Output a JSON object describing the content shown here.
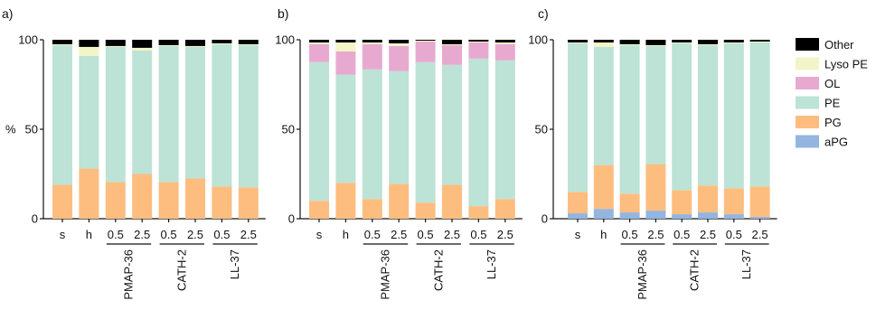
{
  "figure": {
    "ylabel": "%",
    "yticks": [
      0,
      50,
      100
    ],
    "ylim": [
      0,
      100
    ]
  },
  "legend": {
    "items": [
      {
        "name": "Other",
        "color": "#000000"
      },
      {
        "name": "Lyso PE",
        "color": "#f3f5c8"
      },
      {
        "name": "OL",
        "color": "#e8a9d1"
      },
      {
        "name": "PE",
        "color": "#bce3d5"
      },
      {
        "name": "PG",
        "color": "#fdbd7f"
      },
      {
        "name": "aPG",
        "color": "#93b5e0"
      }
    ]
  },
  "chart_data": [
    {
      "panel": "a)",
      "type": "bar",
      "stacked": true,
      "categories": [
        "s",
        "h",
        "0.5",
        "2.5",
        "0.5",
        "2.5",
        "0.5",
        "2.5"
      ],
      "groups": [
        {
          "name": "PMAP-36",
          "from": 2,
          "to": 3
        },
        {
          "name": "CATH-2",
          "from": 4,
          "to": 5
        },
        {
          "name": "LL-37",
          "from": 6,
          "to": 7
        }
      ],
      "ylim": [
        0,
        100
      ],
      "series": [
        {
          "name": "aPG",
          "values": [
            0,
            0,
            0,
            0,
            0,
            0,
            0,
            0
          ]
        },
        {
          "name": "PG",
          "values": [
            19,
            28,
            20.5,
            25,
            20.5,
            22.5,
            18,
            17.5
          ]
        },
        {
          "name": "PE",
          "values": [
            78,
            63,
            75.5,
            69,
            76,
            73.5,
            79.5,
            79.5
          ]
        },
        {
          "name": "OL",
          "values": [
            0,
            0,
            0,
            0,
            0,
            0,
            0,
            0
          ]
        },
        {
          "name": "Lyso PE",
          "values": [
            0.5,
            5,
            0.5,
            1.5,
            0.5,
            0.5,
            0.5,
            0.5
          ]
        },
        {
          "name": "Other",
          "values": [
            2.5,
            4,
            3.5,
            4.5,
            3,
            3.5,
            2,
            2.5
          ]
        }
      ]
    },
    {
      "panel": "b)",
      "type": "bar",
      "stacked": true,
      "categories": [
        "s",
        "h",
        "0.5",
        "2.5",
        "0.5",
        "2.5",
        "0.5",
        "2.5"
      ],
      "groups": [
        {
          "name": "PMAP-36",
          "from": 2,
          "to": 3
        },
        {
          "name": "CATH-2",
          "from": 4,
          "to": 5
        },
        {
          "name": "LL-37",
          "from": 6,
          "to": 7
        }
      ],
      "ylim": [
        0,
        100
      ],
      "series": [
        {
          "name": "aPG",
          "values": [
            0,
            0,
            0,
            0,
            0,
            0,
            0,
            0
          ]
        },
        {
          "name": "PG",
          "values": [
            10,
            20,
            11,
            19.5,
            9,
            19,
            7,
            11
          ]
        },
        {
          "name": "PE",
          "values": [
            77.5,
            60.5,
            72.5,
            63,
            78.5,
            67,
            82.5,
            77.5
          ]
        },
        {
          "name": "OL",
          "values": [
            10,
            13,
            14,
            14,
            11.5,
            11,
            9,
            9
          ]
        },
        {
          "name": "Lyso PE",
          "values": [
            1,
            5,
            1,
            1.5,
            0.5,
            0.5,
            0.5,
            1
          ]
        },
        {
          "name": "Other",
          "values": [
            1.5,
            1.5,
            1.5,
            2,
            0.5,
            2.5,
            1,
            1.5
          ]
        }
      ]
    },
    {
      "panel": "c)",
      "type": "bar",
      "stacked": true,
      "categories": [
        "s",
        "h",
        "0.5",
        "2.5",
        "0.5",
        "2.5",
        "0.5",
        "2.5"
      ],
      "groups": [
        {
          "name": "PMAP-36",
          "from": 2,
          "to": 3
        },
        {
          "name": "CATH-2",
          "from": 4,
          "to": 5
        },
        {
          "name": "LL-37",
          "from": 6,
          "to": 7
        }
      ],
      "ylim": [
        0,
        100
      ],
      "series": [
        {
          "name": "aPG",
          "values": [
            3,
            5.5,
            3.5,
            4.5,
            2.5,
            3.5,
            2.5,
            1
          ]
        },
        {
          "name": "PG",
          "values": [
            12,
            24.5,
            10.5,
            26,
            13.5,
            15,
            14.5,
            17
          ]
        },
        {
          "name": "PE",
          "values": [
            83,
            66,
            83,
            66,
            82,
            78.5,
            81,
            80.5
          ]
        },
        {
          "name": "OL",
          "values": [
            0,
            0,
            0,
            0,
            0,
            0,
            0,
            0
          ]
        },
        {
          "name": "Lyso PE",
          "values": [
            0.5,
            2.5,
            0.5,
            0.5,
            0.5,
            0.5,
            0.5,
            0.5
          ]
        },
        {
          "name": "Other",
          "values": [
            1.5,
            1.5,
            2.5,
            3,
            1.5,
            2.5,
            1.5,
            1
          ]
        }
      ]
    }
  ]
}
